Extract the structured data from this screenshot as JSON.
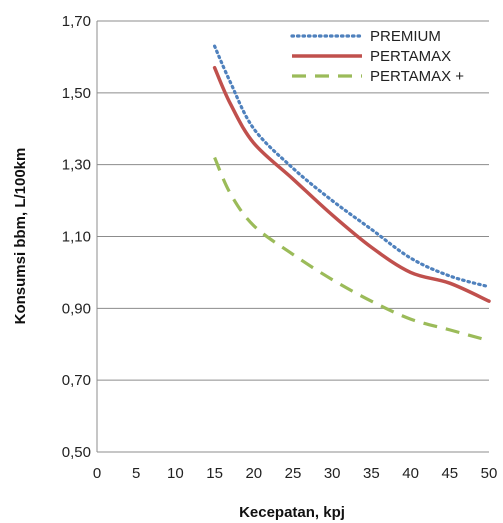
{
  "chart_data": {
    "type": "line",
    "title": "",
    "xlabel": "Kecepatan, kpj",
    "ylabel": "Konsumsi bbm, L/100km",
    "xlim": [
      0,
      50
    ],
    "ylim": [
      0.5,
      1.7
    ],
    "x_ticks": [
      "0",
      "5",
      "10",
      "15",
      "20",
      "25",
      "30",
      "35",
      "40",
      "45",
      "50"
    ],
    "y_ticks": [
      "0,50",
      "0,70",
      "0,90",
      "1,10",
      "1,30",
      "1,50",
      "1,70"
    ],
    "grid": "horizontal",
    "legend_position": "top-right",
    "series": [
      {
        "name": "PREMIUM",
        "color": "#4f81bd",
        "style": "dotted",
        "x": [
          15,
          17,
          20,
          25,
          30,
          35,
          40,
          45,
          50
        ],
        "y": [
          1.63,
          1.53,
          1.4,
          1.29,
          1.2,
          1.12,
          1.04,
          0.99,
          0.96
        ]
      },
      {
        "name": "PERTAMAX",
        "color": "#c0504d",
        "style": "solid",
        "x": [
          15,
          17,
          20,
          25,
          30,
          35,
          40,
          45,
          50
        ],
        "y": [
          1.57,
          1.47,
          1.36,
          1.26,
          1.16,
          1.07,
          1.0,
          0.97,
          0.92
        ]
      },
      {
        "name": "PERTAMAX +",
        "color": "#9bbb59",
        "style": "dashed",
        "x": [
          15,
          17,
          20,
          25,
          30,
          35,
          40,
          45,
          50
        ],
        "y": [
          1.32,
          1.22,
          1.13,
          1.05,
          0.98,
          0.92,
          0.87,
          0.84,
          0.81
        ]
      }
    ]
  }
}
